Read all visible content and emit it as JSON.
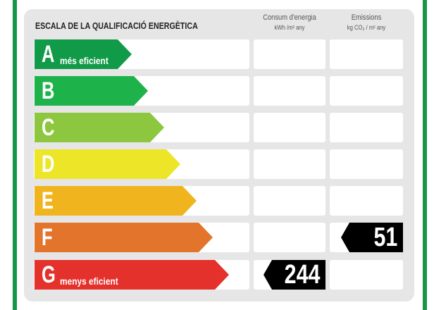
{
  "title": "ESCALA DE LA QUALIFICACIÓ ENERGÈTICA",
  "columns": {
    "energy": {
      "label": "Consum d'energia",
      "unit": "kWh /m² any"
    },
    "emissions": {
      "label": "Emissions",
      "unit": "kg CO₂ / m² any"
    }
  },
  "ratings": [
    {
      "letter": "A",
      "sub": "més eficient",
      "color": "#119a48"
    },
    {
      "letter": "B",
      "sub": "",
      "color": "#1db34a"
    },
    {
      "letter": "C",
      "sub": "",
      "color": "#8dc63f"
    },
    {
      "letter": "D",
      "sub": "",
      "color": "#ede527"
    },
    {
      "letter": "E",
      "sub": "",
      "color": "#f0b51e"
    },
    {
      "letter": "F",
      "sub": "",
      "color": "#e2742b"
    },
    {
      "letter": "G",
      "sub": "menys eficient",
      "color": "#e4312b"
    }
  ],
  "values": {
    "energy": {
      "value": "244",
      "rating": "G"
    },
    "emissions": {
      "value": "51",
      "rating": "F"
    }
  },
  "border_color": "#17964a"
}
